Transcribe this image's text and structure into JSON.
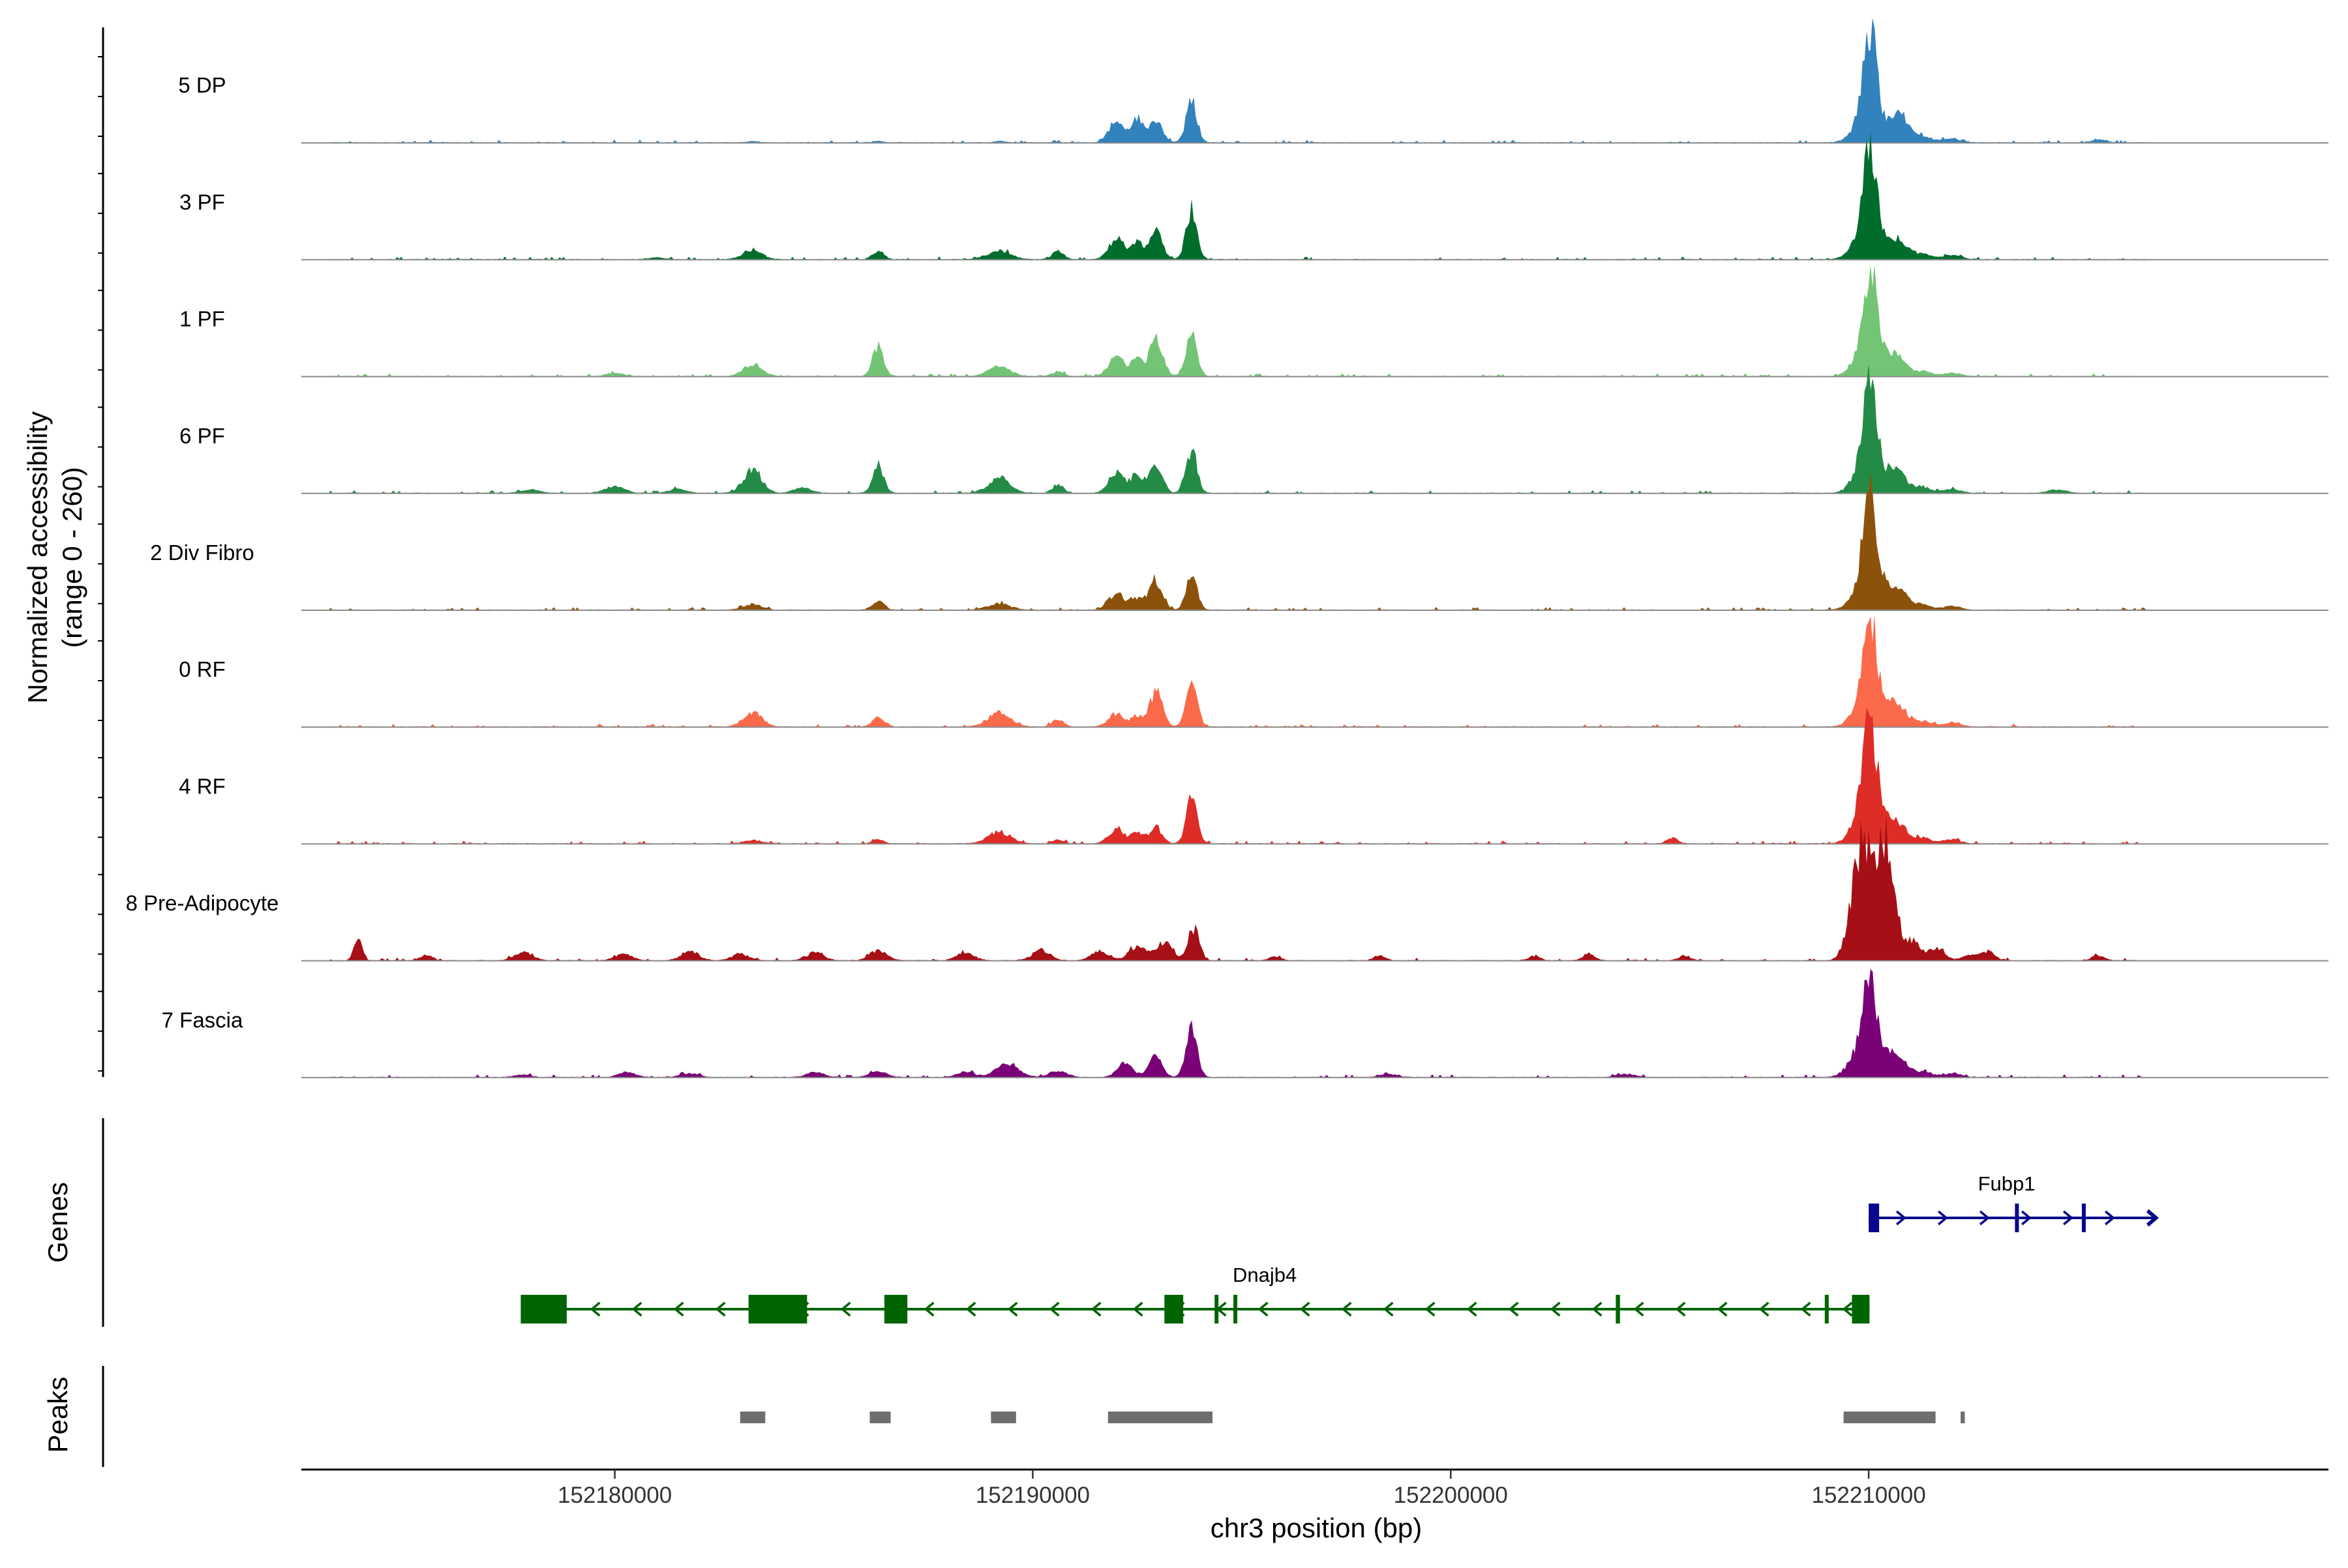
{
  "chart_data": {
    "type": "area",
    "title": "",
    "xlabel": "chr3 position (bp)",
    "ylabel": "Normalized accessibility",
    "ylabel_range": "(range 0 - 260)",
    "xlim": [
      152172500,
      152221000
    ],
    "xticks": [
      152180000,
      152190000,
      152200000,
      152210000
    ],
    "xtick_labels": [
      "152180000",
      "152190000",
      "152200000",
      "152210000"
    ],
    "ylim": [
      0,
      260
    ],
    "series": [
      {
        "name": "5 DP",
        "color": "#3182bd",
        "peaks": [
          [
            152183300,
            3,
            130
          ],
          [
            152186300,
            4,
            110
          ],
          [
            152189200,
            4,
            110
          ],
          [
            152192000,
            52,
            180
          ],
          [
            152192500,
            58,
            150
          ],
          [
            152192950,
            55,
            150
          ],
          [
            152193800,
            100,
            130
          ],
          [
            152209900,
            60,
            260
          ],
          [
            152210050,
            230,
            160
          ],
          [
            152210500,
            45,
            140
          ],
          [
            152210800,
            62,
            170
          ],
          [
            152211300,
            18,
            200
          ],
          [
            152212000,
            10,
            200
          ],
          [
            152215500,
            8,
            150
          ]
        ]
      },
      {
        "name": "3 PF",
        "color": "#006d2c",
        "peaks": [
          [
            152181000,
            4,
            200
          ],
          [
            152183300,
            24,
            220
          ],
          [
            152186300,
            22,
            130
          ],
          [
            152189200,
            22,
            260
          ],
          [
            152190600,
            20,
            130
          ],
          [
            152192000,
            52,
            180
          ],
          [
            152192500,
            45,
            150
          ],
          [
            152192950,
            66,
            150
          ],
          [
            152193800,
            125,
            130
          ],
          [
            152209900,
            68,
            260
          ],
          [
            152210050,
            218,
            160
          ],
          [
            152210500,
            48,
            140
          ],
          [
            152210800,
            40,
            170
          ],
          [
            152211300,
            16,
            200
          ],
          [
            152212000,
            10,
            200
          ]
        ]
      },
      {
        "name": "1 PF",
        "color": "#74c476",
        "peaks": [
          [
            152180000,
            8,
            200
          ],
          [
            152183300,
            30,
            220
          ],
          [
            152186300,
            75,
            130
          ],
          [
            152189200,
            24,
            260
          ],
          [
            152190600,
            12,
            130
          ],
          [
            152192000,
            50,
            180
          ],
          [
            152192500,
            40,
            150
          ],
          [
            152192950,
            96,
            150
          ],
          [
            152193800,
            100,
            130
          ],
          [
            152209900,
            55,
            260
          ],
          [
            152210050,
            238,
            160
          ],
          [
            152210500,
            48,
            140
          ],
          [
            152210800,
            38,
            170
          ],
          [
            152211300,
            12,
            200
          ],
          [
            152212000,
            8,
            200
          ]
        ]
      },
      {
        "name": "6 PF",
        "color": "#238b45",
        "peaks": [
          [
            152178000,
            8,
            220
          ],
          [
            152180000,
            18,
            220
          ],
          [
            152181500,
            10,
            200
          ],
          [
            152183300,
            58,
            220
          ],
          [
            152184500,
            15,
            200
          ],
          [
            152186300,
            72,
            130
          ],
          [
            152189200,
            38,
            260
          ],
          [
            152190600,
            22,
            130
          ],
          [
            152192000,
            52,
            180
          ],
          [
            152192500,
            45,
            150
          ],
          [
            152192950,
            66,
            150
          ],
          [
            152193800,
            110,
            130
          ],
          [
            152209900,
            68,
            260
          ],
          [
            152210050,
            218,
            160
          ],
          [
            152210500,
            48,
            140
          ],
          [
            152210800,
            40,
            170
          ],
          [
            152211300,
            16,
            200
          ],
          [
            152212000,
            10,
            200
          ],
          [
            152214500,
            8,
            220
          ]
        ]
      },
      {
        "name": "2 Div Fibro",
        "color": "#8c510a",
        "peaks": [
          [
            152183300,
            14,
            220
          ],
          [
            152186300,
            22,
            130
          ],
          [
            152189200,
            16,
            260
          ],
          [
            152192000,
            42,
            180
          ],
          [
            152192500,
            30,
            150
          ],
          [
            152192950,
            74,
            150
          ],
          [
            152193800,
            90,
            130
          ],
          [
            152209900,
            70,
            260
          ],
          [
            152210050,
            240,
            160
          ],
          [
            152210500,
            52,
            140
          ],
          [
            152210800,
            44,
            170
          ],
          [
            152211300,
            14,
            200
          ],
          [
            152212000,
            10,
            200
          ]
        ]
      },
      {
        "name": "0 RF",
        "color": "#fb6a4a",
        "peaks": [
          [
            152183300,
            36,
            220
          ],
          [
            152186300,
            28,
            130
          ],
          [
            152189200,
            36,
            260
          ],
          [
            152190600,
            18,
            130
          ],
          [
            152192000,
            34,
            180
          ],
          [
            152192500,
            25,
            150
          ],
          [
            152192950,
            86,
            150
          ],
          [
            152193800,
            120,
            130
          ],
          [
            152209900,
            70,
            260
          ],
          [
            152210050,
            210,
            160
          ],
          [
            152210500,
            48,
            140
          ],
          [
            152210800,
            40,
            170
          ],
          [
            152211300,
            14,
            200
          ],
          [
            152212000,
            10,
            200
          ]
        ]
      },
      {
        "name": "4 RF",
        "color": "#de2d26",
        "peaks": [
          [
            152183300,
            8,
            220
          ],
          [
            152186300,
            10,
            130
          ],
          [
            152189200,
            30,
            260
          ],
          [
            152190600,
            10,
            130
          ],
          [
            152192000,
            38,
            180
          ],
          [
            152192500,
            25,
            150
          ],
          [
            152192950,
            40,
            150
          ],
          [
            152193800,
            112,
            130
          ],
          [
            152205300,
            14,
            130
          ],
          [
            152209900,
            90,
            260
          ],
          [
            152210050,
            236,
            160
          ],
          [
            152210500,
            52,
            140
          ],
          [
            152210800,
            38,
            170
          ],
          [
            152211300,
            14,
            200
          ],
          [
            152212000,
            10,
            200
          ]
        ]
      },
      {
        "name": "8 Pre-Adipocyte",
        "color": "#a50f15",
        "peaks": [
          [
            152173850,
            60,
            90
          ],
          [
            152175500,
            14,
            130
          ],
          [
            152177800,
            22,
            200
          ],
          [
            152180200,
            16,
            200
          ],
          [
            152181800,
            24,
            200
          ],
          [
            152183000,
            16,
            200
          ],
          [
            152184800,
            20,
            200
          ],
          [
            152186300,
            24,
            200
          ],
          [
            152188400,
            20,
            200
          ],
          [
            152190200,
            26,
            200
          ],
          [
            152191600,
            22,
            200
          ],
          [
            152192500,
            36,
            200
          ],
          [
            152193150,
            46,
            200
          ],
          [
            152193850,
            80,
            130
          ],
          [
            152195800,
            10,
            130
          ],
          [
            152198300,
            12,
            130
          ],
          [
            152202000,
            12,
            130
          ],
          [
            152203300,
            18,
            130
          ],
          [
            152205600,
            12,
            130
          ],
          [
            152209750,
            210,
            210
          ],
          [
            152209950,
            120,
            160
          ],
          [
            152210250,
            190,
            160
          ],
          [
            152210500,
            230,
            160
          ],
          [
            152211000,
            50,
            200
          ],
          [
            152211600,
            30,
            200
          ],
          [
            152212500,
            16,
            200
          ],
          [
            152212900,
            22,
            130
          ],
          [
            152215500,
            12,
            130
          ]
        ]
      },
      {
        "name": "7 Fascia",
        "color": "#7a0177",
        "peaks": [
          [
            152177800,
            6,
            200
          ],
          [
            152180300,
            12,
            200
          ],
          [
            152181800,
            10,
            200
          ],
          [
            152184800,
            12,
            200
          ],
          [
            152186300,
            14,
            200
          ],
          [
            152188400,
            14,
            200
          ],
          [
            152189400,
            36,
            260
          ],
          [
            152190600,
            16,
            200
          ],
          [
            152192200,
            34,
            180
          ],
          [
            152192950,
            56,
            150
          ],
          [
            152193800,
            130,
            130
          ],
          [
            152198500,
            8,
            200
          ],
          [
            152204200,
            8,
            200
          ],
          [
            152209800,
            66,
            260
          ],
          [
            152210050,
            218,
            160
          ],
          [
            152210500,
            48,
            140
          ],
          [
            152210800,
            36,
            170
          ],
          [
            152211300,
            14,
            200
          ],
          [
            152212000,
            10,
            200
          ]
        ]
      }
    ],
    "genes": {
      "title": "Genes",
      "items": [
        {
          "name": "Fubp1",
          "strand": "+",
          "color": "#08088a",
          "start": 152210000,
          "end": 152216900,
          "exons": [
            [
              152210000,
              152210250
            ],
            [
              152213500,
              152213580
            ],
            [
              152215100,
              152215140
            ]
          ]
        },
        {
          "name": "Dnajb4",
          "strand": "-",
          "color": "#006400",
          "start": 152177750,
          "end": 152210020,
          "exons": [
            [
              152177750,
              152178850
            ],
            [
              152183200,
              152184600
            ],
            [
              152186450,
              152187000
            ],
            [
              152193150,
              152193600
            ],
            [
              152194350,
              152194380
            ],
            [
              152194800,
              152194830
            ],
            [
              152203950,
              152204050
            ],
            [
              152208950,
              152208980
            ],
            [
              152209600,
              152210020
            ]
          ]
        }
      ]
    },
    "peaks_track": {
      "title": "Peaks",
      "color": "#6e6e6e",
      "regions": [
        [
          152183000,
          152183600
        ],
        [
          152186100,
          152186600
        ],
        [
          152189000,
          152189600
        ],
        [
          152191800,
          152194300
        ],
        [
          152209400,
          152211600
        ],
        [
          152212200,
          152212300
        ]
      ]
    }
  }
}
